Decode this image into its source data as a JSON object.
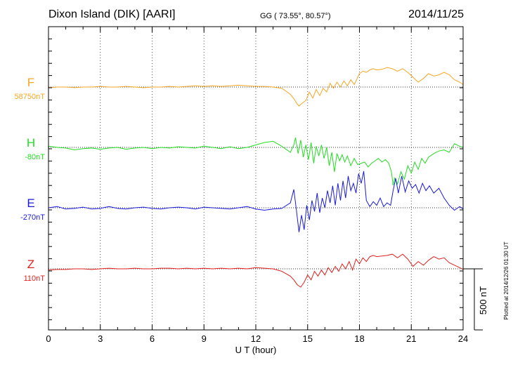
{
  "header": {
    "station": "Dixon Island (DIK)  [AARI]",
    "coords": "GG ( 73.55°,  80.57°)",
    "date": "2014/11/25"
  },
  "chart_data": {
    "type": "line",
    "title": "Dixon Island (DIK)  [AARI]",
    "xlabel": "U T (hour)",
    "xlim": [
      0,
      24
    ],
    "x_ticks": [
      "0",
      "3",
      "6",
      "9",
      "12",
      "15",
      "18",
      "21",
      "24"
    ],
    "scale_label": "500 nT",
    "scale_nT": 500,
    "plotted_note": "Plotted at 2014/12/26 01:30 UT",
    "grid": true,
    "series": [
      {
        "name": "F",
        "baseline_label": "58750nT",
        "color": "#f5a623",
        "x": [
          0,
          0.5,
          1,
          1.5,
          2,
          2.5,
          3,
          3.5,
          4,
          4.5,
          5,
          5.5,
          6,
          6.5,
          7,
          7.5,
          8,
          8.5,
          9,
          9.5,
          10,
          10.5,
          11,
          11.5,
          12,
          12.5,
          13,
          13.5,
          14,
          14.2,
          14.4,
          14.5,
          14.7,
          14.9,
          15.1,
          15.3,
          15.5,
          15.7,
          15.9,
          16.1,
          16.3,
          16.5,
          16.7,
          16.9,
          17.1,
          17.3,
          17.5,
          17.7,
          17.9,
          18,
          18.2,
          18.4,
          18.6,
          18.8,
          19,
          19.3,
          19.6,
          19.9,
          20.2,
          20.5,
          20.8,
          21.1,
          21.4,
          21.7,
          22,
          22.3,
          22.6,
          22.9,
          23.2,
          23.5,
          23.8,
          24
        ],
        "values": [
          -5,
          0,
          0,
          -5,
          0,
          0,
          5,
          0,
          0,
          5,
          0,
          -5,
          0,
          0,
          5,
          0,
          5,
          10,
          5,
          10,
          5,
          10,
          15,
          10,
          5,
          5,
          0,
          -10,
          -60,
          -95,
          -140,
          -155,
          -130,
          -110,
          -40,
          -90,
          -20,
          -70,
          -10,
          -40,
          30,
          -10,
          40,
          0,
          50,
          10,
          60,
          20,
          80,
          110,
          130,
          120,
          140,
          150,
          140,
          145,
          160,
          150,
          130,
          150,
          120,
          80,
          40,
          70,
          110,
          90,
          100,
          120,
          100,
          60,
          40,
          20
        ]
      },
      {
        "name": "H",
        "baseline_label": "-80nT",
        "color": "#22dd22",
        "x": [
          0,
          0.5,
          1,
          1.5,
          2,
          2.5,
          3,
          3.5,
          4,
          4.5,
          5,
          5.5,
          6,
          6.5,
          7,
          7.5,
          8,
          8.5,
          9,
          9.5,
          10,
          10.5,
          11,
          11.5,
          12,
          12.5,
          13,
          13.5,
          14,
          14.2,
          14.3,
          14.45,
          14.6,
          14.75,
          14.9,
          15.05,
          15.2,
          15.35,
          15.5,
          15.65,
          15.8,
          15.95,
          16.1,
          16.25,
          16.4,
          16.55,
          16.7,
          16.85,
          17,
          17.15,
          17.3,
          17.5,
          17.7,
          17.9,
          18.1,
          18.3,
          18.5,
          18.7,
          18.9,
          19.1,
          19.3,
          19.5,
          19.7,
          19.85,
          19.95,
          20.05,
          20.2,
          20.4,
          20.6,
          20.8,
          21,
          21.2,
          21.4,
          21.6,
          21.8,
          22,
          22.3,
          22.6,
          22.9,
          23.2,
          23.5,
          23.8,
          24
        ],
        "values": [
          10,
          0,
          -5,
          -20,
          -10,
          -5,
          -15,
          -5,
          0,
          -15,
          -5,
          0,
          -10,
          0,
          -5,
          5,
          0,
          -5,
          10,
          0,
          -10,
          5,
          -10,
          0,
          20,
          40,
          50,
          10,
          -40,
          20,
          80,
          -50,
          60,
          -80,
          20,
          -100,
          40,
          -130,
          10,
          -70,
          20,
          -90,
          0,
          -150,
          -40,
          -200,
          -50,
          -110,
          -60,
          -120,
          -70,
          -150,
          -90,
          -140,
          -130,
          -120,
          -160,
          -130,
          -110,
          -90,
          -120,
          -100,
          -130,
          -200,
          -310,
          -250,
          -300,
          -200,
          -260,
          -150,
          -210,
          -120,
          -180,
          -90,
          -130,
          -80,
          -50,
          -30,
          -20,
          -40,
          30,
          10,
          0
        ]
      },
      {
        "name": "E",
        "baseline_label": "-270nT",
        "color": "#1a1adb",
        "x": [
          0,
          0.5,
          1,
          1.5,
          2,
          2.5,
          3,
          3.5,
          4,
          4.5,
          5,
          5.5,
          6,
          6.5,
          7,
          7.5,
          8,
          8.5,
          9,
          9.5,
          10,
          10.5,
          11,
          11.5,
          12,
          12.5,
          13,
          13.5,
          14,
          14.2,
          14.35,
          14.5,
          14.65,
          14.8,
          14.95,
          15.1,
          15.25,
          15.4,
          15.55,
          15.7,
          15.85,
          16,
          16.15,
          16.3,
          16.45,
          16.6,
          16.75,
          16.9,
          17.05,
          17.2,
          17.35,
          17.5,
          17.65,
          17.8,
          17.95,
          18.1,
          18.25,
          18.4,
          18.6,
          18.8,
          19,
          19.2,
          19.4,
          19.6,
          19.8,
          19.95,
          20.1,
          20.25,
          20.45,
          20.65,
          20.85,
          21.05,
          21.25,
          21.45,
          21.65,
          21.85,
          22.05,
          22.3,
          22.6,
          22.9,
          23.2,
          23.5,
          23.8,
          24
        ],
        "values": [
          0,
          10,
          -10,
          -5,
          5,
          -10,
          -5,
          10,
          -5,
          -10,
          0,
          5,
          -5,
          -10,
          0,
          5,
          0,
          -10,
          5,
          0,
          -5,
          -10,
          0,
          10,
          -10,
          -20,
          -10,
          -5,
          40,
          150,
          -20,
          -200,
          -60,
          -180,
          20,
          -100,
          60,
          -30,
          120,
          -40,
          80,
          0,
          140,
          40,
          180,
          20,
          200,
          60,
          220,
          80,
          260,
          140,
          200,
          120,
          280,
          200,
          300,
          60,
          10,
          50,
          20,
          80,
          10,
          40,
          20,
          140,
          240,
          120,
          260,
          130,
          220,
          160,
          190,
          120,
          200,
          140,
          180,
          120,
          160,
          80,
          20,
          -20,
          10,
          -10
        ]
      },
      {
        "name": "Z",
        "baseline_label": "110nT",
        "color": "#e0201d",
        "x": [
          0,
          0.5,
          1,
          1.5,
          2,
          2.5,
          3,
          3.5,
          4,
          4.5,
          5,
          5.5,
          6,
          6.5,
          7,
          7.5,
          8,
          8.5,
          9,
          9.5,
          10,
          10.5,
          11,
          11.5,
          12,
          12.5,
          13,
          13.5,
          14,
          14.2,
          14.4,
          14.6,
          14.8,
          15,
          15.2,
          15.4,
          15.6,
          15.8,
          16,
          16.2,
          16.4,
          16.6,
          16.8,
          17,
          17.2,
          17.4,
          17.6,
          17.8,
          18,
          18.2,
          18.4,
          18.6,
          18.8,
          19,
          19.3,
          19.6,
          19.9,
          20.2,
          20.5,
          20.8,
          21.1,
          21.4,
          21.7,
          22,
          22.3,
          22.6,
          22.9,
          23.2,
          23.5,
          23.8,
          24
        ],
        "values": [
          -10,
          -5,
          -5,
          0,
          0,
          -5,
          0,
          5,
          0,
          0,
          5,
          0,
          0,
          5,
          5,
          0,
          5,
          0,
          5,
          0,
          5,
          0,
          5,
          0,
          10,
          5,
          0,
          -20,
          -60,
          -90,
          -130,
          -150,
          -110,
          -50,
          -90,
          -20,
          -60,
          -10,
          -50,
          10,
          -30,
          20,
          -20,
          40,
          0,
          60,
          -10,
          80,
          40,
          90,
          60,
          100,
          110,
          100,
          105,
          110,
          120,
          90,
          120,
          80,
          20,
          60,
          30,
          70,
          100,
          80,
          90,
          50,
          30,
          10,
          -5
        ]
      }
    ]
  }
}
